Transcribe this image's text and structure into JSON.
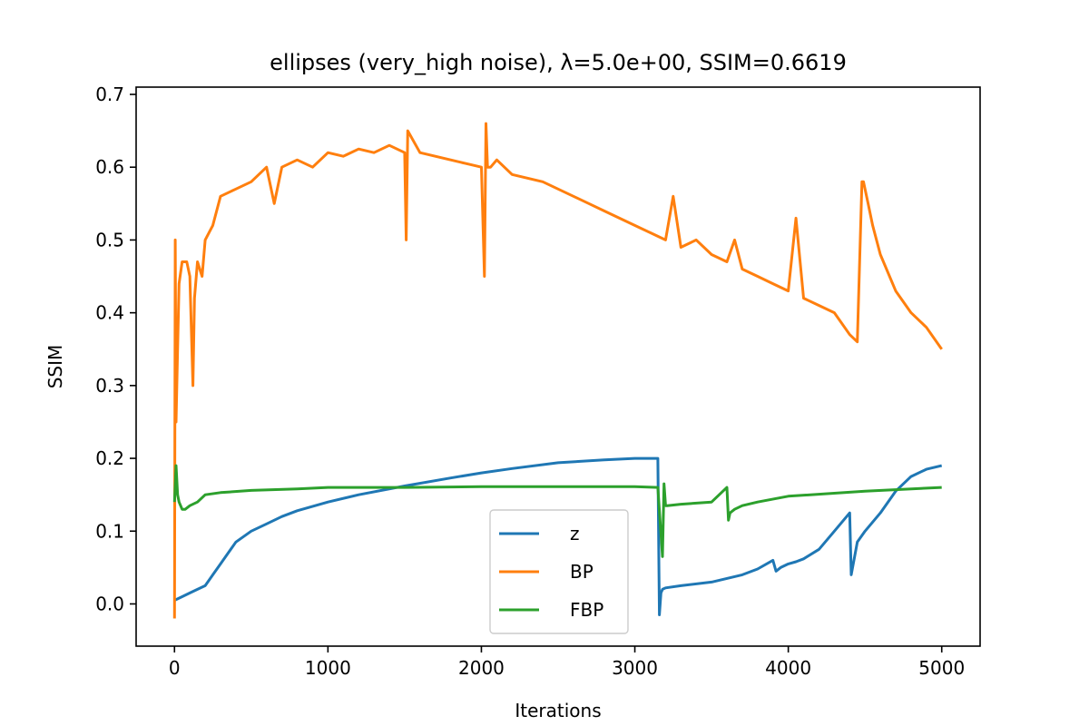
{
  "chart_data": {
    "type": "line",
    "title": "ellipses (very_high noise), λ=5.0e+00, SSIM=0.6619",
    "xlabel": "Iterations",
    "ylabel": "SSIM",
    "xlim": [
      -250,
      5250
    ],
    "ylim": [
      -0.058,
      0.71
    ],
    "xticks": [
      0,
      1000,
      2000,
      3000,
      4000,
      5000
    ],
    "yticks": [
      0.0,
      0.1,
      0.2,
      0.3,
      0.4,
      0.5,
      0.6,
      0.7
    ],
    "xtick_labels": [
      "0",
      "1000",
      "2000",
      "3000",
      "4000",
      "5000"
    ],
    "ytick_labels": [
      "0.0",
      "0.1",
      "0.2",
      "0.3",
      "0.4",
      "0.5",
      "0.6",
      "0.7"
    ],
    "grid": false,
    "legend_position": "lower-center",
    "series": [
      {
        "name": "z",
        "color": "#1f77b4",
        "x": [
          0,
          50,
          100,
          150,
          200,
          250,
          300,
          400,
          500,
          600,
          700,
          800,
          1000,
          1200,
          1500,
          1800,
          2000,
          2200,
          2500,
          2800,
          3000,
          3150,
          3160,
          3170,
          3180,
          3200,
          3300,
          3500,
          3600,
          3700,
          3800,
          3900,
          3920,
          3950,
          4000,
          4050,
          4100,
          4200,
          4300,
          4400,
          4410,
          4450,
          4500,
          4600,
          4700,
          4800,
          4900,
          5000
        ],
        "y": [
          0.005,
          0.01,
          0.015,
          0.02,
          0.025,
          0.04,
          0.055,
          0.085,
          0.1,
          0.11,
          0.12,
          0.128,
          0.14,
          0.15,
          0.162,
          0.173,
          0.18,
          0.186,
          0.194,
          0.198,
          0.2,
          0.2,
          -0.015,
          0.015,
          0.02,
          0.022,
          0.025,
          0.03,
          0.035,
          0.04,
          0.048,
          0.06,
          0.045,
          0.05,
          0.055,
          0.058,
          0.062,
          0.075,
          0.1,
          0.125,
          0.04,
          0.085,
          0.1,
          0.125,
          0.155,
          0.175,
          0.185,
          0.19
        ]
      },
      {
        "name": "BP",
        "color": "#ff7f0e",
        "x": [
          0,
          5,
          10,
          20,
          30,
          50,
          80,
          100,
          120,
          130,
          150,
          180,
          200,
          250,
          300,
          400,
          500,
          600,
          650,
          700,
          800,
          900,
          1000,
          1100,
          1200,
          1300,
          1400,
          1500,
          1510,
          1520,
          1600,
          1700,
          1800,
          1900,
          2000,
          2020,
          2030,
          2040,
          2060,
          2100,
          2200,
          2300,
          2400,
          2500,
          2600,
          2700,
          2800,
          2900,
          3000,
          3100,
          3200,
          3250,
          3300,
          3400,
          3500,
          3600,
          3650,
          3700,
          3800,
          3900,
          4000,
          4050,
          4100,
          4200,
          4300,
          4400,
          4450,
          4480,
          4490,
          4500,
          4520,
          4550,
          4600,
          4700,
          4800,
          4900,
          5000
        ],
        "y": [
          -0.02,
          0.5,
          0.25,
          0.35,
          0.44,
          0.47,
          0.47,
          0.45,
          0.3,
          0.42,
          0.47,
          0.45,
          0.5,
          0.52,
          0.56,
          0.57,
          0.58,
          0.6,
          0.55,
          0.6,
          0.61,
          0.6,
          0.62,
          0.615,
          0.625,
          0.62,
          0.63,
          0.62,
          0.5,
          0.65,
          0.62,
          0.615,
          0.61,
          0.605,
          0.6,
          0.45,
          0.66,
          0.6,
          0.6,
          0.61,
          0.59,
          0.585,
          0.58,
          0.57,
          0.56,
          0.55,
          0.54,
          0.53,
          0.52,
          0.51,
          0.5,
          0.56,
          0.49,
          0.5,
          0.48,
          0.47,
          0.5,
          0.46,
          0.45,
          0.44,
          0.43,
          0.53,
          0.42,
          0.41,
          0.4,
          0.37,
          0.36,
          0.58,
          0.58,
          0.57,
          0.55,
          0.52,
          0.48,
          0.43,
          0.4,
          0.38,
          0.35
        ]
      },
      {
        "name": "FBP",
        "color": "#2ca02c",
        "x": [
          0,
          10,
          20,
          30,
          50,
          70,
          100,
          150,
          200,
          300,
          500,
          800,
          1000,
          1500,
          2000,
          2500,
          3000,
          3150,
          3180,
          3190,
          3200,
          3210,
          3300,
          3500,
          3600,
          3610,
          3620,
          3650,
          3700,
          3800,
          4000,
          4500,
          5000
        ],
        "y": [
          0.14,
          0.19,
          0.15,
          0.14,
          0.13,
          0.13,
          0.135,
          0.14,
          0.15,
          0.153,
          0.156,
          0.158,
          0.16,
          0.16,
          0.161,
          0.161,
          0.161,
          0.16,
          0.065,
          0.165,
          0.135,
          0.135,
          0.137,
          0.14,
          0.16,
          0.115,
          0.125,
          0.13,
          0.135,
          0.14,
          0.148,
          0.155,
          0.16
        ]
      }
    ]
  }
}
